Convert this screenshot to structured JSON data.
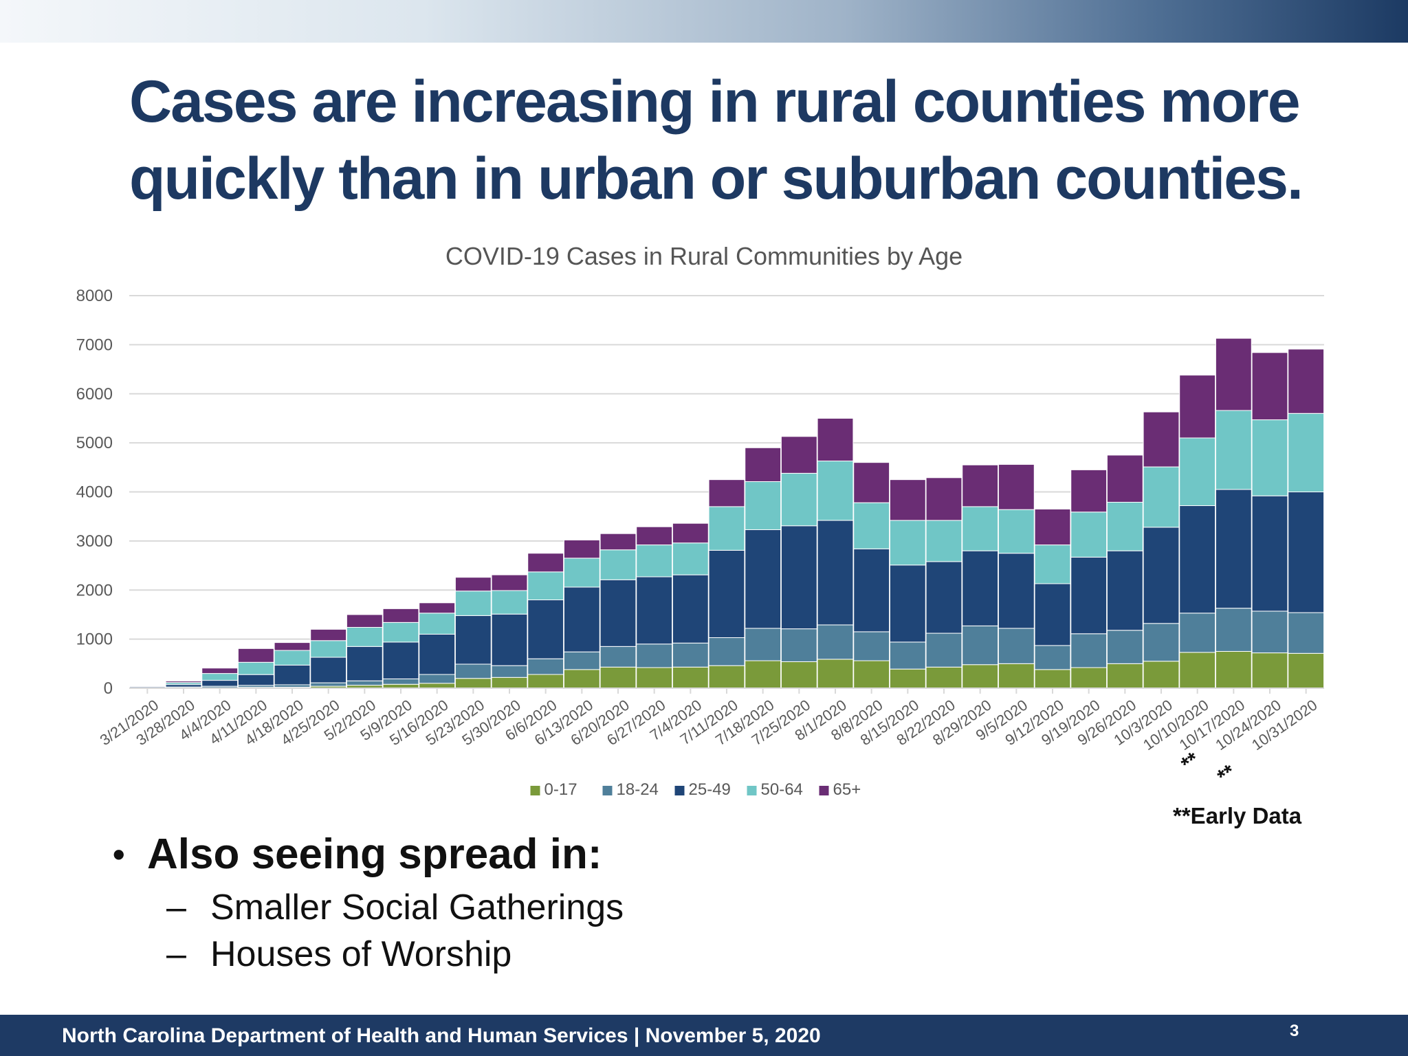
{
  "slide": {
    "title_line1": "Cases are increasing in rural counties more",
    "title_line2": "quickly than in urban or suburban counties."
  },
  "chart_data": {
    "type": "bar",
    "stacked": true,
    "title": "COVID-19 Cases in Rural Communities by Age",
    "xlabel": "",
    "ylabel": "",
    "ylim": [
      0,
      8000
    ],
    "yticks": [
      0,
      1000,
      2000,
      3000,
      4000,
      5000,
      6000,
      7000,
      8000
    ],
    "grid": true,
    "legend_position": "bottom",
    "categories": [
      "3/21/2020",
      "3/28/2020",
      "4/4/2020",
      "4/11/2020",
      "4/18/2020",
      "4/25/2020",
      "5/2/2020",
      "5/9/2020",
      "5/16/2020",
      "5/23/2020",
      "5/30/2020",
      "6/6/2020",
      "6/13/2020",
      "6/20/2020",
      "6/27/2020",
      "7/4/2020",
      "7/11/2020",
      "7/18/2020",
      "7/25/2020",
      "8/1/2020",
      "8/8/2020",
      "8/15/2020",
      "8/22/2020",
      "8/29/2020",
      "9/5/2020",
      "9/12/2020",
      "9/19/2020",
      "9/26/2020",
      "10/3/2020",
      "10/10/2020",
      "10/17/2020",
      "10/24/2020",
      "10/31/2020"
    ],
    "series": [
      {
        "name": "0-17",
        "color": "#7a9a3a",
        "values": [
          3,
          5,
          10,
          18,
          20,
          40,
          60,
          80,
          100,
          200,
          220,
          280,
          380,
          430,
          420,
          430,
          460,
          560,
          540,
          590,
          560,
          390,
          430,
          480,
          500,
          380,
          420,
          500,
          550,
          730,
          750,
          720,
          710
        ]
      },
      {
        "name": "18-24",
        "color": "#4f7f9a",
        "values": [
          10,
          20,
          30,
          40,
          50,
          70,
          90,
          110,
          180,
          290,
          240,
          320,
          360,
          420,
          480,
          490,
          570,
          660,
          670,
          700,
          590,
          550,
          690,
          790,
          720,
          490,
          690,
          680,
          770,
          800,
          880,
          850,
          830
        ]
      },
      {
        "name": "25-49",
        "color": "#1f4577",
        "values": [
          20,
          50,
          120,
          220,
          400,
          520,
          700,
          750,
          820,
          990,
          1050,
          1200,
          1320,
          1360,
          1370,
          1390,
          1780,
          2010,
          2100,
          2130,
          1690,
          1570,
          1460,
          1530,
          1530,
          1260,
          1560,
          1620,
          1960,
          2190,
          2420,
          2350,
          2460
        ]
      },
      {
        "name": "50-64",
        "color": "#70c6c6",
        "values": [
          10,
          40,
          140,
          250,
          300,
          340,
          390,
          400,
          430,
          500,
          480,
          570,
          590,
          610,
          650,
          650,
          890,
          980,
          1070,
          1210,
          940,
          910,
          840,
          900,
          890,
          790,
          920,
          990,
          1230,
          1380,
          1610,
          1550,
          1600
        ]
      },
      {
        "name": "65+",
        "color": "#6a2d74",
        "values": [
          3,
          30,
          110,
          280,
          160,
          230,
          260,
          280,
          210,
          280,
          320,
          380,
          370,
          330,
          370,
          400,
          550,
          690,
          750,
          870,
          820,
          830,
          870,
          850,
          920,
          730,
          860,
          960,
          1120,
          1280,
          1470,
          1370,
          1310
        ]
      }
    ],
    "annotations": [
      {
        "category": "10/10/2020",
        "text": "**"
      },
      {
        "category": "10/17/2020",
        "text": "**"
      }
    ]
  },
  "note": "**Early Data",
  "bullets": {
    "main": "Also seeing spread in:",
    "items": [
      "Smaller Social Gatherings",
      "Houses of Worship"
    ]
  },
  "footer": {
    "text": "North Carolina Department of Health and Human Services | November 5, 2020",
    "page_number": "3"
  }
}
